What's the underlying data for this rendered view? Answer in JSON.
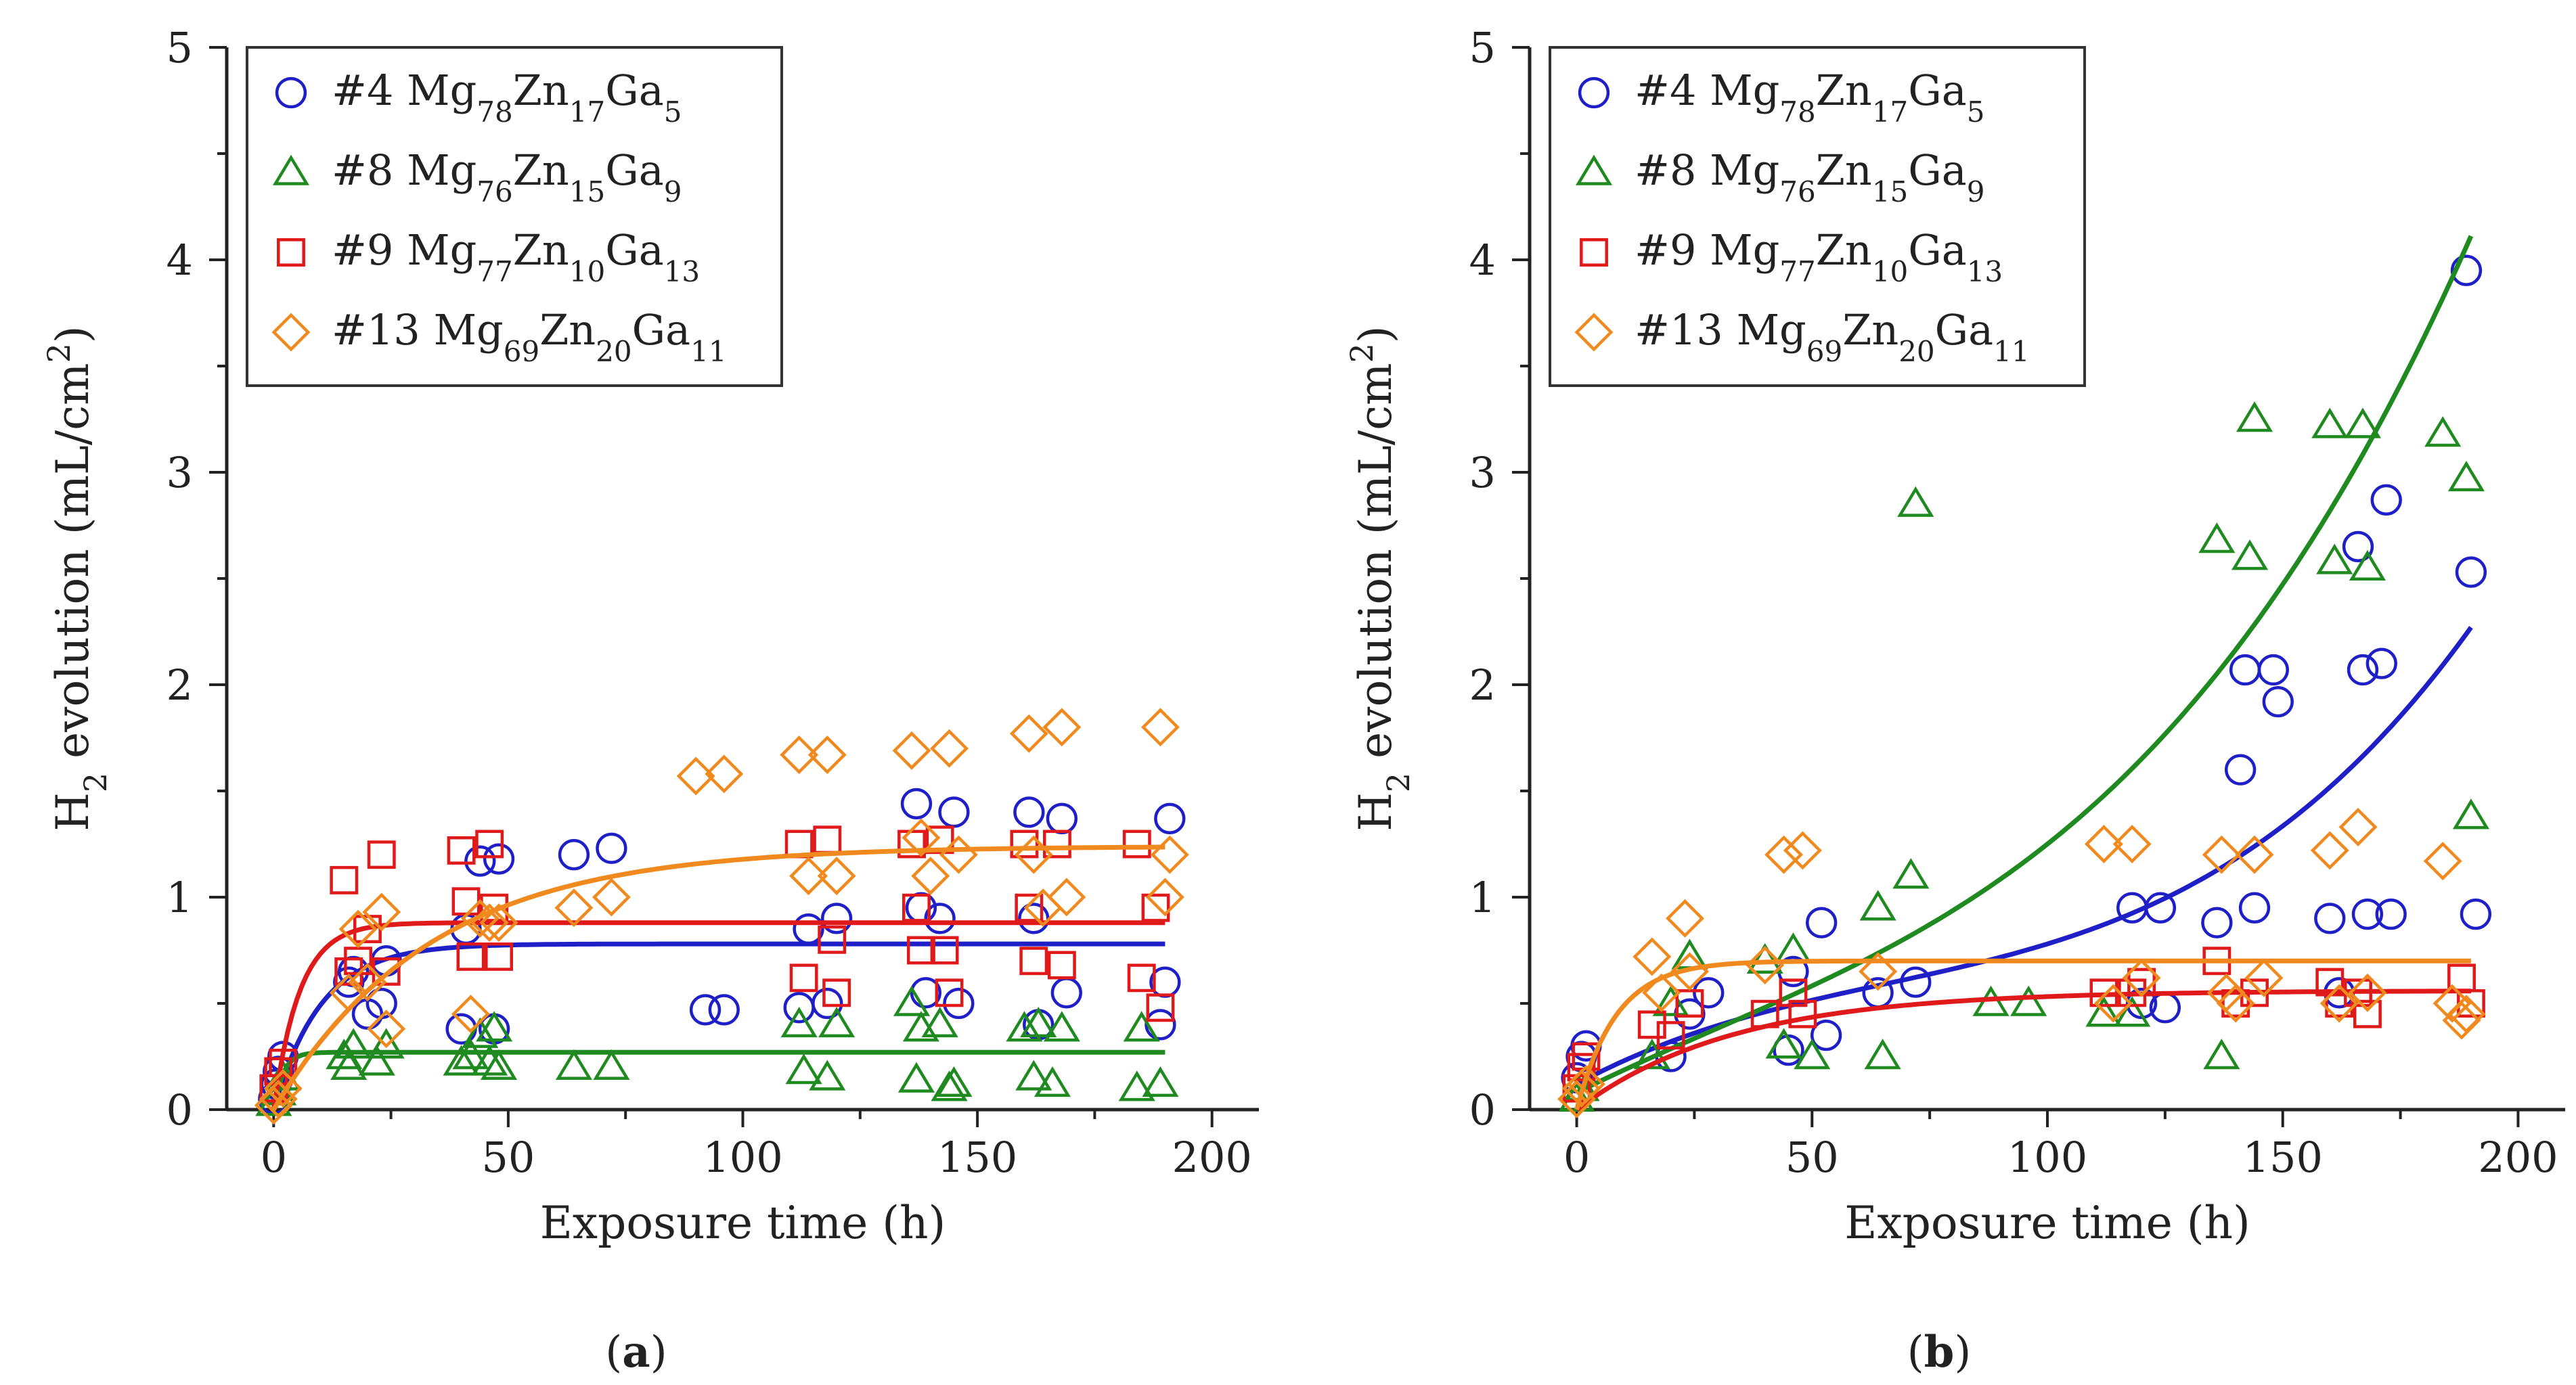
{
  "figure": {
    "panel_labels": [
      "(a)",
      "(b)"
    ]
  },
  "chart_data": [
    {
      "type": "scatter",
      "panel": "(a)",
      "title": "",
      "xlabel": "Exposure time (h)",
      "ylabel": "H2 evolution (mL/cm2)",
      "ylabel_parts": {
        "main": "H",
        "sub": "2",
        "rest": " evolution (mL/cm",
        "sup": "2",
        "end": ")"
      },
      "xlim": [
        -10,
        210
      ],
      "ylim": [
        0,
        5
      ],
      "xticks": [
        0,
        50,
        100,
        150,
        200
      ],
      "yticks": [
        0,
        1,
        2,
        3,
        4,
        5
      ],
      "grid": false,
      "legend_position": "top-left",
      "series": [
        {
          "name": "#4 Mg78Zn17Ga5",
          "legend": {
            "prefix": "#4 ",
            "parts": [
              [
                "Mg",
                "78"
              ],
              [
                "Zn",
                "17"
              ],
              [
                "Ga",
                "5"
              ]
            ]
          },
          "color": "#1f1fc8",
          "marker": "circle",
          "x": [
            0,
            0.5,
            1,
            2,
            16,
            17,
            20,
            23,
            24,
            40,
            41,
            44,
            47,
            48,
            64,
            72,
            92,
            96,
            112,
            114,
            118,
            120,
            137,
            138,
            139,
            142,
            145,
            146,
            161,
            162,
            163,
            168,
            169,
            189,
            190,
            191
          ],
          "y": [
            0.05,
            0.12,
            0.18,
            0.25,
            0.6,
            0.65,
            0.45,
            0.5,
            0.7,
            0.38,
            0.85,
            1.17,
            0.38,
            1.18,
            1.2,
            1.23,
            0.47,
            0.47,
            0.48,
            0.85,
            0.5,
            0.9,
            1.44,
            0.95,
            0.55,
            0.9,
            1.4,
            0.5,
            1.4,
            0.9,
            0.4,
            1.37,
            0.55,
            0.4,
            0.6,
            1.37
          ],
          "fit": {
            "kind": "exp",
            "a": 0.78,
            "k": 0.1,
            "b": 0.0
          }
        },
        {
          "name": "#8 Mg76Zn15Ga9",
          "legend": {
            "prefix": "#8 ",
            "parts": [
              [
                "Mg",
                "76"
              ],
              [
                "Zn",
                "15"
              ],
              [
                "Ga",
                "9"
              ]
            ]
          },
          "color": "#1f8a1f",
          "marker": "triangle",
          "x": [
            0,
            1,
            2,
            15,
            16,
            17,
            22,
            24,
            40,
            42,
            44,
            46,
            47,
            48,
            64,
            72,
            112,
            113,
            118,
            120,
            136,
            137,
            138,
            142,
            144,
            145,
            160,
            162,
            163,
            166,
            168,
            184,
            185,
            189
          ],
          "y": [
            0.03,
            0.08,
            0.15,
            0.25,
            0.2,
            0.3,
            0.22,
            0.3,
            0.22,
            0.25,
            0.35,
            0.22,
            0.38,
            0.2,
            0.2,
            0.2,
            0.4,
            0.18,
            0.15,
            0.4,
            0.5,
            0.14,
            0.38,
            0.4,
            0.1,
            0.12,
            0.38,
            0.15,
            0.4,
            0.12,
            0.38,
            0.1,
            0.38,
            0.12
          ],
          "fit": {
            "kind": "exp",
            "a": 0.27,
            "k": 0.5,
            "b": 0.0
          }
        },
        {
          "name": "#9 Mg77Zn10Ga13",
          "legend": {
            "prefix": "#9 ",
            "parts": [
              [
                "Mg",
                "77"
              ],
              [
                "Zn",
                "10"
              ],
              [
                "Ga",
                "13"
              ]
            ]
          },
          "color": "#e01a1a",
          "marker": "square",
          "x": [
            0,
            1,
            2,
            15,
            16,
            18,
            20,
            23,
            24,
            40,
            41,
            42,
            46,
            47,
            48,
            112,
            113,
            118,
            119,
            120,
            136,
            137,
            138,
            142,
            143,
            144,
            160,
            161,
            162,
            167,
            168,
            184,
            185,
            188,
            189
          ],
          "y": [
            0.1,
            0.18,
            0.22,
            1.08,
            0.65,
            0.7,
            0.85,
            1.2,
            0.65,
            1.22,
            0.98,
            0.72,
            1.25,
            0.95,
            0.72,
            1.25,
            0.62,
            1.27,
            0.8,
            0.55,
            1.25,
            0.95,
            0.75,
            1.27,
            0.75,
            0.55,
            1.25,
            0.95,
            0.7,
            1.25,
            0.68,
            1.25,
            0.62,
            0.95,
            0.48
          ],
          "fit": {
            "kind": "exp",
            "a": 0.88,
            "k": 0.18,
            "b": 0.0
          }
        },
        {
          "name": "#13 Mg69Zn20Ga11",
          "legend": {
            "prefix": "#13 ",
            "parts": [
              [
                "Mg",
                "69"
              ],
              [
                "Zn",
                "20"
              ],
              [
                "Ga",
                "11"
              ]
            ]
          },
          "color": "#f08a1e",
          "marker": "diamond",
          "x": [
            0,
            1,
            2,
            16,
            18,
            20,
            23,
            24,
            42,
            44,
            46,
            48,
            64,
            72,
            90,
            96,
            112,
            114,
            118,
            120,
            136,
            138,
            140,
            144,
            146,
            161,
            162,
            164,
            168,
            169,
            189,
            190,
            191
          ],
          "y": [
            0.02,
            0.05,
            0.1,
            0.55,
            0.85,
            0.6,
            0.93,
            0.38,
            0.45,
            0.9,
            0.88,
            0.88,
            0.95,
            1.0,
            1.57,
            1.58,
            1.67,
            1.1,
            1.67,
            1.1,
            1.69,
            1.28,
            1.1,
            1.7,
            1.2,
            1.77,
            1.2,
            0.95,
            1.8,
            1.0,
            1.8,
            1.0,
            1.2
          ],
          "fit": {
            "kind": "exp",
            "a": 1.24,
            "k": 0.03,
            "b": 0.0
          }
        }
      ]
    },
    {
      "type": "scatter",
      "panel": "(b)",
      "title": "",
      "xlabel": "Exposure time (h)",
      "ylabel": "H2 evolution (mL/cm2)",
      "ylabel_parts": {
        "main": "H",
        "sub": "2",
        "rest": " evolution (mL/cm",
        "sup": "2",
        "end": ")"
      },
      "xlim": [
        -10,
        210
      ],
      "ylim": [
        0,
        5
      ],
      "xticks": [
        0,
        50,
        100,
        150,
        200
      ],
      "yticks": [
        0,
        1,
        2,
        3,
        4,
        5
      ],
      "grid": false,
      "legend_position": "top-left",
      "series": [
        {
          "name": "#4 Mg78Zn17Ga5",
          "legend": {
            "prefix": "#4 ",
            "parts": [
              [
                "Mg",
                "78"
              ],
              [
                "Zn",
                "17"
              ],
              [
                "Ga",
                "5"
              ]
            ]
          },
          "color": "#1f1fc8",
          "marker": "circle",
          "x": [
            0,
            1,
            2,
            20,
            24,
            28,
            45,
            46,
            52,
            53,
            64,
            72,
            118,
            120,
            124,
            125,
            136,
            141,
            142,
            144,
            148,
            149,
            160,
            162,
            166,
            167,
            168,
            171,
            172,
            173,
            189,
            190,
            191
          ],
          "y": [
            0.15,
            0.25,
            0.3,
            0.25,
            0.45,
            0.55,
            0.28,
            0.65,
            0.88,
            0.35,
            0.55,
            0.6,
            0.95,
            0.5,
            0.95,
            0.48,
            0.88,
            1.6,
            2.07,
            0.95,
            2.07,
            1.92,
            0.9,
            0.55,
            2.65,
            2.07,
            0.92,
            2.1,
            2.87,
            0.92,
            3.95,
            2.53,
            0.92
          ],
          "fit": {
            "kind": "poly",
            "c0": 0.12,
            "c1": 0.012,
            "c2": -0.00011,
            "c3": 5.6e-07
          }
        },
        {
          "name": "#8 Mg76Zn15Ga9",
          "legend": {
            "prefix": "#8 ",
            "parts": [
              [
                "Mg",
                "76"
              ],
              [
                "Zn",
                "15"
              ],
              [
                "Ga",
                "9"
              ]
            ]
          },
          "color": "#1f8a1f",
          "marker": "triangle",
          "x": [
            0,
            1,
            16,
            20,
            24,
            40,
            44,
            46,
            50,
            64,
            65,
            71,
            72,
            88,
            96,
            112,
            118,
            136,
            137,
            143,
            144,
            160,
            161,
            167,
            168,
            184,
            189,
            190
          ],
          "y": [
            0.05,
            0.1,
            0.25,
            0.5,
            0.72,
            0.7,
            0.3,
            0.75,
            0.25,
            0.95,
            0.25,
            1.1,
            2.85,
            0.5,
            0.5,
            0.45,
            0.45,
            2.68,
            0.25,
            2.6,
            3.25,
            3.22,
            2.58,
            3.22,
            2.55,
            3.18,
            2.97,
            1.38
          ],
          "fit": {
            "kind": "poly",
            "c0": 0.08,
            "c1": 0.011,
            "c2": -4.5e-05,
            "c3": 5.2e-07
          }
        },
        {
          "name": "#9 Mg77Zn10Ga13",
          "legend": {
            "prefix": "#9 ",
            "parts": [
              [
                "Mg",
                "77"
              ],
              [
                "Zn",
                "10"
              ],
              [
                "Ga",
                "13"
              ]
            ]
          },
          "color": "#e01a1a",
          "marker": "square",
          "x": [
            0,
            1,
            2,
            16,
            20,
            24,
            40,
            46,
            48,
            112,
            118,
            120,
            136,
            140,
            144,
            160,
            162,
            166,
            168,
            188,
            190
          ],
          "y": [
            0.1,
            0.2,
            0.25,
            0.4,
            0.35,
            0.5,
            0.45,
            0.55,
            0.45,
            0.55,
            0.55,
            0.6,
            0.7,
            0.5,
            0.55,
            0.6,
            0.5,
            0.55,
            0.45,
            0.62,
            0.5
          ],
          "fit": {
            "kind": "exp",
            "a": 0.56,
            "k": 0.03,
            "b": 0.0
          }
        },
        {
          "name": "#13 Mg69Zn20Ga11",
          "legend": {
            "prefix": "#13 ",
            "parts": [
              [
                "Mg",
                "69"
              ],
              [
                "Zn",
                "20"
              ],
              [
                "Ga",
                "11"
              ]
            ]
          },
          "color": "#f08a1e",
          "marker": "diamond",
          "x": [
            0,
            1,
            2,
            16,
            18,
            23,
            24,
            40,
            44,
            48,
            64,
            112,
            114,
            118,
            120,
            137,
            138,
            140,
            144,
            146,
            160,
            162,
            166,
            168,
            184,
            186,
            188,
            189
          ],
          "y": [
            0.05,
            0.1,
            0.12,
            0.72,
            0.55,
            0.9,
            0.65,
            0.68,
            1.2,
            1.22,
            0.65,
            1.25,
            0.5,
            1.25,
            0.62,
            1.2,
            0.55,
            0.5,
            1.2,
            0.62,
            1.22,
            0.5,
            1.33,
            0.55,
            1.17,
            0.5,
            0.42,
            0.45
          ],
          "fit": {
            "kind": "exp",
            "a": 0.7,
            "k": 0.12,
            "b": 0.0
          }
        }
      ]
    }
  ]
}
